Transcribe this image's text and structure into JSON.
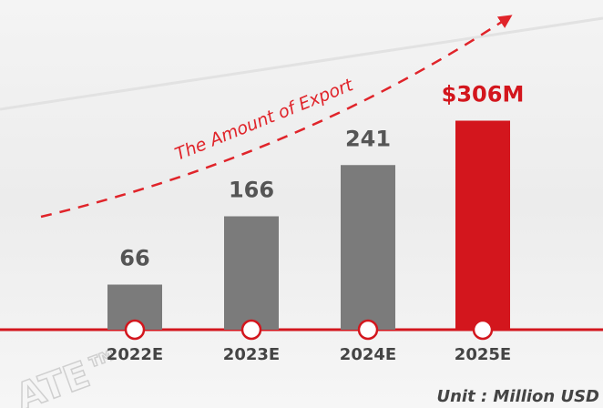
{
  "chart_data": {
    "type": "bar",
    "categories": [
      "2022E",
      "2023E",
      "2024E",
      "2025E"
    ],
    "values": [
      66,
      166,
      241,
      306
    ],
    "value_labels": [
      "66",
      "166",
      "241",
      "$306M"
    ],
    "colors": [
      "#7b7b7b",
      "#7b7b7b",
      "#7b7b7b",
      "#d3161d"
    ],
    "label_colors": [
      "#555555",
      "#555555",
      "#555555",
      "#d3161d"
    ],
    "annotation": "The Amount of Export",
    "unit": "Unit : Million USD",
    "watermark": "ATE™"
  }
}
